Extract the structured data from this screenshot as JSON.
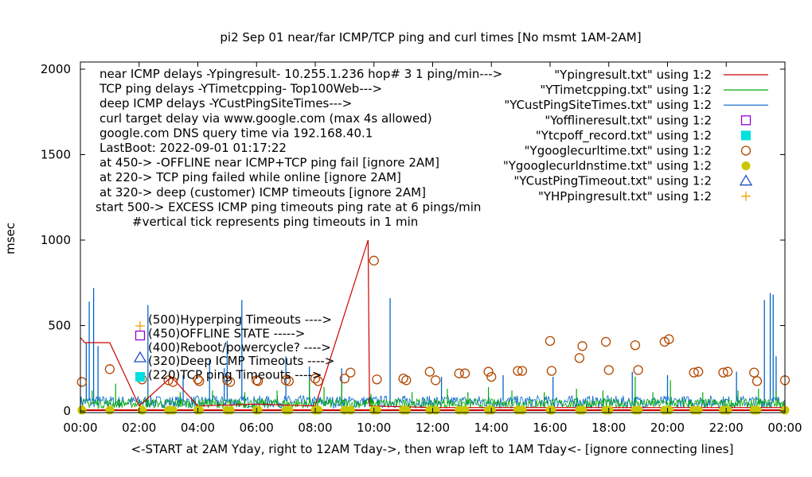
{
  "chart_data": {
    "type": "line",
    "title": "pi2 Sep 01  near/far ICMP/TCP ping and curl times [No msmt 1AM-2AM]",
    "ylabel": "msec",
    "xlabel": "<-START at 2AM Yday, right to 12AM Tday->, then wrap left to 1AM Tday<- [ignore connecting lines]",
    "xlim": [
      0,
      24
    ],
    "ylim": [
      0,
      2050
    ],
    "x_ticks": [
      0,
      2,
      4,
      6,
      8,
      10,
      12,
      14,
      16,
      18,
      20,
      22,
      24
    ],
    "x_tick_labels": [
      "00:00",
      "02:00",
      "04:00",
      "06:00",
      "08:00",
      "10:00",
      "12:00",
      "14:00",
      "16:00",
      "18:00",
      "20:00",
      "22:00",
      "00:00"
    ],
    "y_ticks": [
      0,
      500,
      1000,
      1500,
      2000
    ],
    "y_tick_labels": [
      "0",
      "500",
      "1000",
      "1500",
      "2000"
    ],
    "grid": false,
    "legend_position": "top-right",
    "notes": [
      "near ICMP delays -Ypingresult- 10.255.1.236 hop# 3 1 ping/min--->",
      "TCP ping delays -YTimetcpping- Top100Web--->",
      "deep ICMP delays -YCustPingSiteTimes--->",
      "curl target delay via www.google.com (max 4s allowed)",
      "google.com DNS query time via 192.168.40.1",
      "LastBoot: 2022-09-01 01:17:22",
      "at 450-> -OFFLINE near ICMP+TCP ping fail [ignore 2AM]",
      "at 220-> TCP ping failed while online [ignore 2AM]",
      "at 320-> deep (customer) ICMP timeouts [ignore 2AM]",
      "start 500-> EXCESS ICMP ping timeouts ping rate at 6 pings/min",
      "#vertical tick represents ping timeouts in 1 min"
    ],
    "level_labels": [
      "(500)Hyperping Timeouts ---->",
      "(450)OFFLINE STATE ----->",
      "(400)Reboot/powercycle? ---->",
      "(320)Deep ICMP Timeouts ---->",
      "(220)TCP ping Timeouts ---->"
    ],
    "legend": [
      {
        "label": "\"Ypingresult.txt\" using 1:2",
        "marker": "line",
        "color": "#cc0000"
      },
      {
        "label": "\"YTimetcpping.txt\" using 1:2",
        "marker": "line",
        "color": "#00aa00"
      },
      {
        "label": "\"YCustPingSiteTimes.txt\" using 1:2",
        "marker": "line",
        "color": "#0066cc"
      },
      {
        "label": "\"Yofflineresult.txt\" using 1:2",
        "marker": "open-square",
        "color": "#9400d3"
      },
      {
        "label": "\"Ytcpoff_record.txt\" using 1:2",
        "marker": "filled-square",
        "color": "#00e0e0"
      },
      {
        "label": "\"Ygooglecurltime.txt\" using 1:2",
        "marker": "open-circle",
        "color": "#b34700"
      },
      {
        "label": "\"Ygooglecurldnstime.txt\" using 1:2",
        "marker": "filled-circle",
        "color": "#c8c800"
      },
      {
        "label": "\"YCustPingTimeout.txt\" using 1:2",
        "marker": "open-triangle",
        "color": "#1f4fbf"
      },
      {
        "label": "\"YHPpingresult.txt\" using 1:2",
        "marker": "plus",
        "color": "#f0a000"
      }
    ],
    "series": [
      {
        "name": "\"Ypingresult.txt\" using 1:2",
        "baseline": 5,
        "points": [
          [
            0,
            430
          ],
          [
            0.15,
            400
          ],
          [
            1,
            400
          ],
          [
            2,
            30
          ],
          [
            3.1,
            200
          ],
          [
            4,
            30
          ],
          [
            6,
            40
          ],
          [
            8,
            30
          ],
          [
            9.8,
            1000
          ],
          [
            9.85,
            30
          ],
          [
            12,
            20
          ],
          [
            14,
            20
          ],
          [
            16,
            20
          ],
          [
            18,
            20
          ],
          [
            20,
            20
          ],
          [
            22,
            20
          ],
          [
            24,
            20
          ]
        ]
      },
      {
        "name": "\"YTimetcpping.txt\" using 1:2",
        "baseline": 40,
        "spikes": [
          [
            0.4,
            120
          ],
          [
            1.2,
            160
          ],
          [
            2.3,
            100
          ],
          [
            3.4,
            110
          ],
          [
            4.5,
            120
          ],
          [
            5.6,
            110
          ],
          [
            6.7,
            120
          ],
          [
            7.8,
            180
          ],
          [
            8.3,
            140
          ],
          [
            8.9,
            160
          ],
          [
            9.9,
            100
          ],
          [
            11.3,
            110
          ],
          [
            12.5,
            130
          ],
          [
            13.2,
            110
          ],
          [
            13.9,
            140
          ],
          [
            14.7,
            120
          ],
          [
            15.8,
            110
          ],
          [
            16.9,
            130
          ],
          [
            17.8,
            120
          ],
          [
            18.9,
            200
          ],
          [
            19.5,
            110
          ],
          [
            20.1,
            180
          ],
          [
            21.2,
            110
          ],
          [
            22.4,
            120
          ],
          [
            23.1,
            130
          ],
          [
            23.7,
            120
          ]
        ]
      },
      {
        "name": "\"YCustPingSiteTimes.txt\" using 1:2",
        "baseline": 60,
        "spikes": [
          [
            0.2,
            400
          ],
          [
            0.3,
            640
          ],
          [
            0.45,
            720
          ],
          [
            0.6,
            380
          ],
          [
            2.3,
            620
          ],
          [
            3.5,
            210
          ],
          [
            4.4,
            300
          ],
          [
            4.9,
            250
          ],
          [
            5,
            410
          ],
          [
            5.5,
            650
          ],
          [
            7,
            320
          ],
          [
            7.8,
            260
          ],
          [
            8.9,
            250
          ],
          [
            10.55,
            660
          ],
          [
            12.3,
            200
          ],
          [
            14.4,
            210
          ],
          [
            16.1,
            200
          ],
          [
            18.8,
            230
          ],
          [
            20,
            210
          ],
          [
            22.35,
            230
          ],
          [
            23.3,
            650
          ],
          [
            23.5,
            690
          ],
          [
            23.6,
            680
          ],
          [
            23.7,
            320
          ]
        ]
      }
    ],
    "scatter": [
      {
        "name": "\"Ygooglecurltime.txt\" using 1:2",
        "points": [
          [
            0.05,
            170
          ],
          [
            1,
            245
          ],
          [
            2.1,
            185
          ],
          [
            3.0,
            180
          ],
          [
            3.15,
            170
          ],
          [
            4.0,
            185
          ],
          [
            4.05,
            175
          ],
          [
            5.0,
            180
          ],
          [
            5.1,
            170
          ],
          [
            6.0,
            180
          ],
          [
            6.05,
            175
          ],
          [
            7.0,
            180
          ],
          [
            7.1,
            175
          ],
          [
            8.0,
            190
          ],
          [
            8.1,
            175
          ],
          [
            9.0,
            190
          ],
          [
            9.2,
            225
          ],
          [
            10.0,
            880
          ],
          [
            10.1,
            185
          ],
          [
            11.0,
            190
          ],
          [
            11.1,
            180
          ],
          [
            11.9,
            230
          ],
          [
            12.1,
            180
          ],
          [
            12.9,
            220
          ],
          [
            13.1,
            220
          ],
          [
            13.9,
            230
          ],
          [
            14.0,
            200
          ],
          [
            14.9,
            235
          ],
          [
            15.05,
            235
          ],
          [
            16.0,
            410
          ],
          [
            16.05,
            235
          ],
          [
            17.0,
            310
          ],
          [
            17.1,
            380
          ],
          [
            17.9,
            405
          ],
          [
            18.0,
            240
          ],
          [
            18.9,
            385
          ],
          [
            19.0,
            240
          ],
          [
            19.9,
            405
          ],
          [
            20.05,
            420
          ],
          [
            20.9,
            225
          ],
          [
            21.05,
            230
          ],
          [
            21.9,
            225
          ],
          [
            22.05,
            230
          ],
          [
            22.95,
            225
          ],
          [
            23.05,
            175
          ],
          [
            24.0,
            180
          ]
        ]
      },
      {
        "name": "\"Ygooglecurldnstime.txt\" using 1:2",
        "points": [
          [
            0.05,
            5
          ],
          [
            1,
            5
          ],
          [
            2.1,
            5
          ],
          [
            3.0,
            5
          ],
          [
            3.15,
            5
          ],
          [
            4.0,
            5
          ],
          [
            4.05,
            5
          ],
          [
            5.0,
            5
          ],
          [
            5.1,
            5
          ],
          [
            6.0,
            5
          ],
          [
            6.05,
            5
          ],
          [
            7.0,
            5
          ],
          [
            7.1,
            5
          ],
          [
            8.0,
            5
          ],
          [
            8.1,
            5
          ],
          [
            9.0,
            5
          ],
          [
            9.2,
            5
          ],
          [
            10.0,
            5
          ],
          [
            10.1,
            5
          ],
          [
            11.0,
            5
          ],
          [
            11.1,
            5
          ],
          [
            11.9,
            5
          ],
          [
            12.1,
            5
          ],
          [
            12.9,
            5
          ],
          [
            13.1,
            5
          ],
          [
            13.9,
            5
          ],
          [
            14.0,
            5
          ],
          [
            14.9,
            5
          ],
          [
            15.05,
            5
          ],
          [
            16.0,
            5
          ],
          [
            16.05,
            5
          ],
          [
            17.0,
            5
          ],
          [
            17.1,
            5
          ],
          [
            17.9,
            5
          ],
          [
            18.0,
            5
          ],
          [
            18.9,
            5
          ],
          [
            19.0,
            5
          ],
          [
            19.9,
            5
          ],
          [
            20.05,
            5
          ],
          [
            20.9,
            5
          ],
          [
            21.05,
            5
          ],
          [
            21.9,
            5
          ],
          [
            22.05,
            5
          ],
          [
            22.95,
            5
          ],
          [
            23.05,
            5
          ],
          [
            24.0,
            5
          ]
        ]
      }
    ],
    "level_markers": [
      {
        "marker": "plus",
        "color": "#f0a000",
        "x": 2.1,
        "y": 500
      },
      {
        "marker": "open-square",
        "color": "#9400d3",
        "x": 2.1,
        "y": 450
      },
      {
        "marker": "open-triangle",
        "color": "#1f4fbf",
        "x": 2.1,
        "y": 320
      },
      {
        "marker": "filled-square",
        "color": "#00e0e0",
        "x": 2.1,
        "y": 220
      }
    ]
  }
}
